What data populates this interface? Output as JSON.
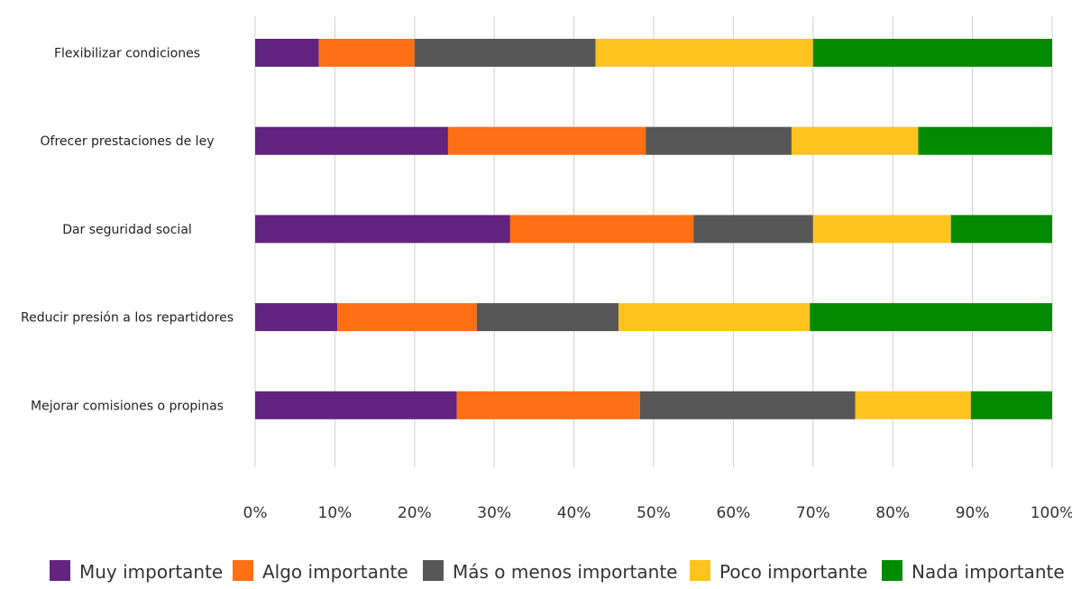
{
  "chart_data": {
    "type": "bar",
    "orientation": "horizontal",
    "stacked": "percent",
    "categories": [
      "Flexibilizar condiciones",
      "Ofrecer prestaciones de ley",
      "Dar seguridad social",
      "Reducir presión a los repartidores",
      "Mejorar comisiones o propinas"
    ],
    "series": [
      {
        "name": "Muy importante",
        "color": "#62247f",
        "values": [
          8,
          24.2,
          32,
          10.3,
          25.3
        ]
      },
      {
        "name": "Algo importante",
        "color": "#ff6f14",
        "values": [
          12,
          24.8,
          23,
          17.5,
          23
        ]
      },
      {
        "name": "Más o menos importante",
        "color": "#575757",
        "values": [
          22.7,
          18.3,
          15,
          17.8,
          27
        ]
      },
      {
        "name": "Poco importante",
        "color": "#fec31f",
        "values": [
          27.3,
          15.9,
          17.3,
          24,
          14.5
        ]
      },
      {
        "name": "Nada importante",
        "color": "#038a01",
        "values": [
          30,
          16.8,
          12.7,
          30.4,
          10.2
        ]
      }
    ],
    "xticks": [
      "0%",
      "10%",
      "20%",
      "30%",
      "40%",
      "50%",
      "60%",
      "70%",
      "80%",
      "90%",
      "100%"
    ],
    "xlim": [
      0,
      100
    ],
    "grid": true,
    "legend_position": "bottom"
  }
}
